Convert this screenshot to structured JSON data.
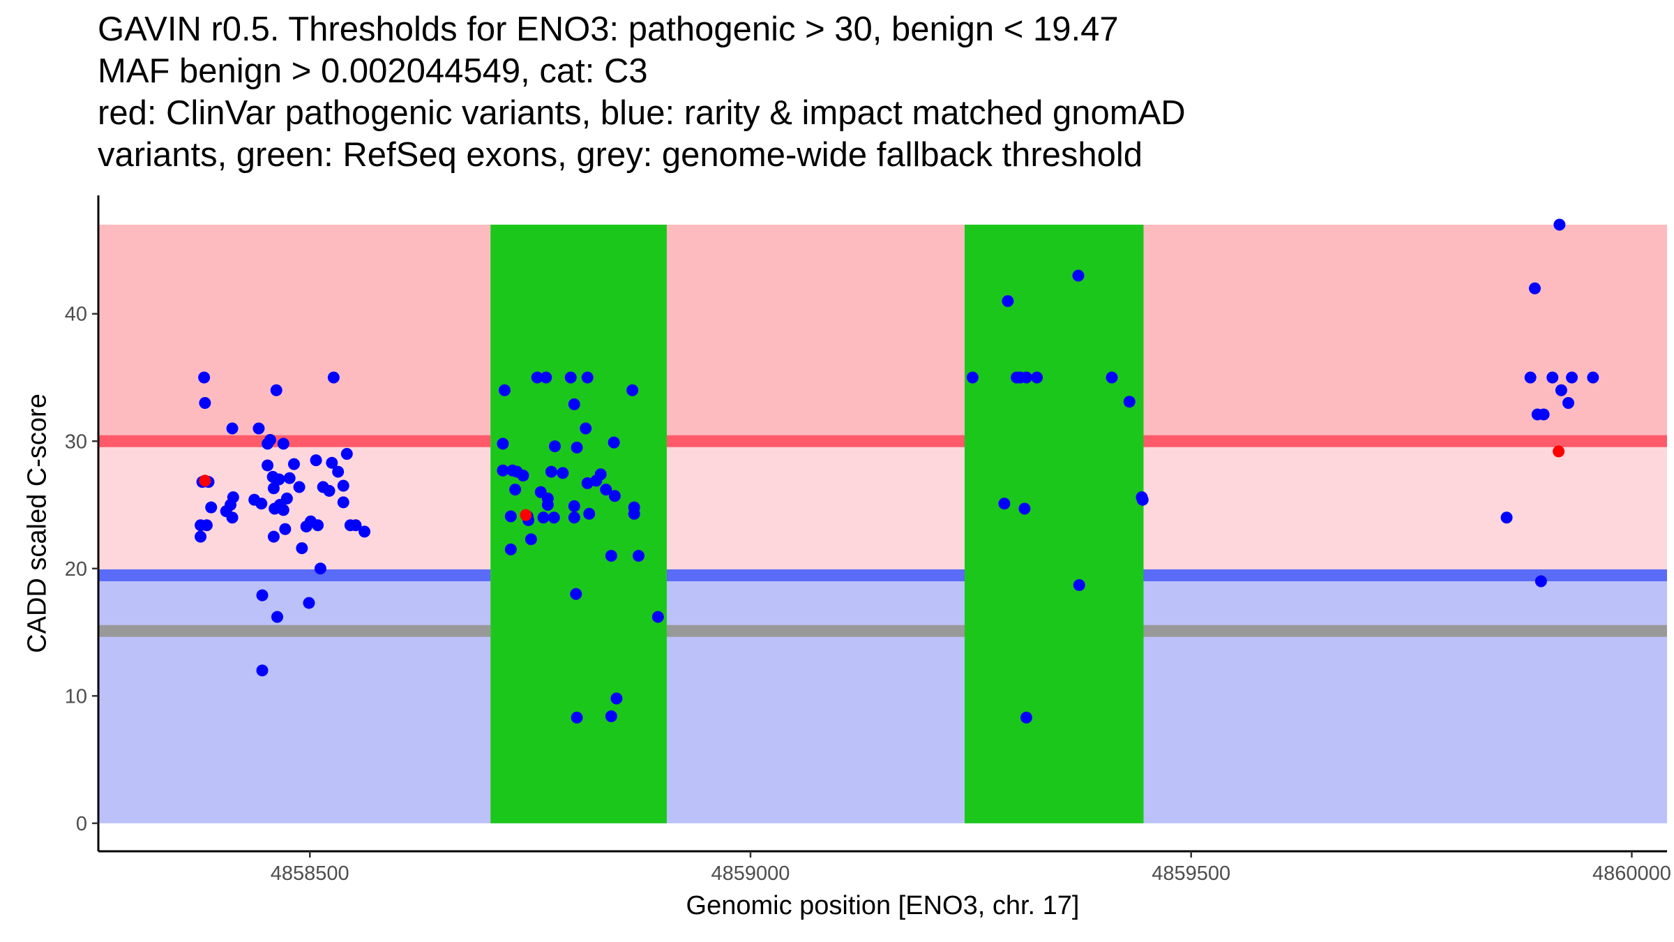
{
  "chart_data": {
    "type": "scatter",
    "title": [
      "GAVIN r0.5. Thresholds for ENO3: pathogenic > 30, benign < 19.47",
      "MAF benign > 0.002044549, cat: C3",
      "red: ClinVar pathogenic variants, blue: rarity & impact matched gnomAD",
      "variants, green: RefSeq exons, grey: genome-wide fallback threshold"
    ],
    "xlabel": "Genomic position [ENO3, chr. 17]",
    "ylabel": "CADD scaled C-score",
    "xlim": [
      4858260,
      4860040
    ],
    "ylim": [
      -2.2,
      49.3
    ],
    "x_ticks": [
      4858500,
      4859000,
      4859500,
      4860000
    ],
    "y_ticks": [
      0,
      10,
      20,
      30,
      40
    ],
    "thresholds": {
      "pathogenic": 30,
      "benign": 19.47,
      "fallback": 15.1,
      "top": 47
    },
    "colors": {
      "pathogenic_zone": "#fdbbc0",
      "middle_zone": "#fdd7dc",
      "benign_zone": "#bcc1fa",
      "exon": "#1cc71c",
      "pathogenic_line": "#ff5a6a",
      "benign_line": "#5a6bf7",
      "fallback_line": "#999999",
      "gnomad": "#0000ff",
      "clinvar": "#ff0000"
    },
    "exons": [
      {
        "start": 4858705,
        "end": 4858905
      },
      {
        "start": 4859243,
        "end": 4859446
      }
    ],
    "series": [
      {
        "name": "gnomAD",
        "points": [
          [
            4858380,
            35
          ],
          [
            4858381,
            33
          ],
          [
            4858378,
            26.8
          ],
          [
            4858385,
            26.8
          ],
          [
            4858388,
            24.8
          ],
          [
            4858376,
            23.4
          ],
          [
            4858383,
            23.4
          ],
          [
            4858376,
            22.5
          ],
          [
            4858412,
            31
          ],
          [
            4858405,
            24.5
          ],
          [
            4858410,
            25
          ],
          [
            4858412,
            24
          ],
          [
            4858413,
            25.6
          ],
          [
            4858442,
            31
          ],
          [
            4858437,
            25.4
          ],
          [
            4858445,
            25.1
          ],
          [
            4858446,
            12
          ],
          [
            4858446,
            17.9
          ],
          [
            4858452,
            29.8
          ],
          [
            4858455,
            30.1
          ],
          [
            4858452,
            28.1
          ],
          [
            4858458,
            27.2
          ],
          [
            4858459,
            26.3
          ],
          [
            4858460,
            24.7
          ],
          [
            4858459,
            22.5
          ],
          [
            4858462,
            34
          ],
          [
            4858463,
            16.2
          ],
          [
            4858465,
            27
          ],
          [
            4858466,
            25
          ],
          [
            4858470,
            24.6
          ],
          [
            4858472,
            23.1
          ],
          [
            4858470,
            29.8
          ],
          [
            4858474,
            25.5
          ],
          [
            4858477,
            27.1
          ],
          [
            4858482,
            28.2
          ],
          [
            4858488,
            26.4
          ],
          [
            4858491,
            21.6
          ],
          [
            4858496,
            23.3
          ],
          [
            4858499,
            17.3
          ],
          [
            4858501,
            23.7
          ],
          [
            4858507,
            28.5
          ],
          [
            4858509,
            23.4
          ],
          [
            4858512,
            20
          ],
          [
            4858515,
            26.4
          ],
          [
            4858522,
            26.1
          ],
          [
            4858525,
            28.3
          ],
          [
            4858527,
            35
          ],
          [
            4858532,
            27.6
          ],
          [
            4858538,
            25.2
          ],
          [
            4858538,
            26.5
          ],
          [
            4858542,
            29
          ],
          [
            4858546,
            23.4
          ],
          [
            4858552,
            23.4
          ],
          [
            4858562,
            22.9
          ],
          [
            4858719,
            29.8
          ],
          [
            4858719,
            27.7
          ],
          [
            4858721,
            34
          ],
          [
            4858730,
            27.7
          ],
          [
            4858735,
            27.6
          ],
          [
            4858728,
            24.1
          ],
          [
            4858728,
            21.5
          ],
          [
            4858733,
            26.2
          ],
          [
            4858742,
            27.3
          ],
          [
            4858747,
            24.1
          ],
          [
            4858751,
            22.3
          ],
          [
            4858748,
            23.8
          ],
          [
            4858758,
            35
          ],
          [
            4858768,
            35
          ],
          [
            4858762,
            26
          ],
          [
            4858765,
            24
          ],
          [
            4858770,
            25
          ],
          [
            4858770,
            25.5
          ],
          [
            4858774,
            27.6
          ],
          [
            4858777,
            24
          ],
          [
            4858778,
            29.6
          ],
          [
            4858787,
            27.5
          ],
          [
            4858796,
            35
          ],
          [
            4858800,
            32.9
          ],
          [
            4858803,
            29.5
          ],
          [
            4858800,
            24.9
          ],
          [
            4858800,
            24
          ],
          [
            4858802,
            18
          ],
          [
            4858803,
            8.3
          ],
          [
            4858815,
            35
          ],
          [
            4858813,
            31
          ],
          [
            4858815,
            26.7
          ],
          [
            4858817,
            24.3
          ],
          [
            4858825,
            26.9
          ],
          [
            4858830,
            27.4
          ],
          [
            4858836,
            26.2
          ],
          [
            4858842,
            21
          ],
          [
            4858842,
            8.4
          ],
          [
            4858845,
            29.9
          ],
          [
            4858846,
            25.7
          ],
          [
            4858848,
            9.8
          ],
          [
            4858866,
            34
          ],
          [
            4858868,
            24.8
          ],
          [
            4858868,
            24.3
          ],
          [
            4858873,
            21
          ],
          [
            4858895,
            16.2
          ],
          [
            4859252,
            35
          ],
          [
            4859288,
            25.1
          ],
          [
            4859292,
            41
          ],
          [
            4859302,
            35
          ],
          [
            4859306,
            35
          ],
          [
            4859311,
            24.7
          ],
          [
            4859313,
            35
          ],
          [
            4859313,
            8.3
          ],
          [
            4859325,
            35
          ],
          [
            4859372,
            43
          ],
          [
            4859373,
            18.7
          ],
          [
            4859410,
            35
          ],
          [
            4859430,
            33.1
          ],
          [
            4859444,
            25.6
          ],
          [
            4859445,
            25.4
          ],
          [
            4859858,
            24
          ],
          [
            4859885,
            35
          ],
          [
            4859890,
            42
          ],
          [
            4859893,
            32.1
          ],
          [
            4859897,
            19
          ],
          [
            4859900,
            32.1
          ],
          [
            4859910,
            35
          ],
          [
            4859918,
            47
          ],
          [
            4859920,
            34
          ],
          [
            4859928,
            33
          ],
          [
            4859932,
            35
          ],
          [
            4859956,
            35
          ]
        ]
      },
      {
        "name": "ClinVar",
        "points": [
          [
            4858381,
            26.9
          ],
          [
            4858745,
            24.2
          ],
          [
            4859917,
            29.2
          ]
        ]
      }
    ]
  }
}
